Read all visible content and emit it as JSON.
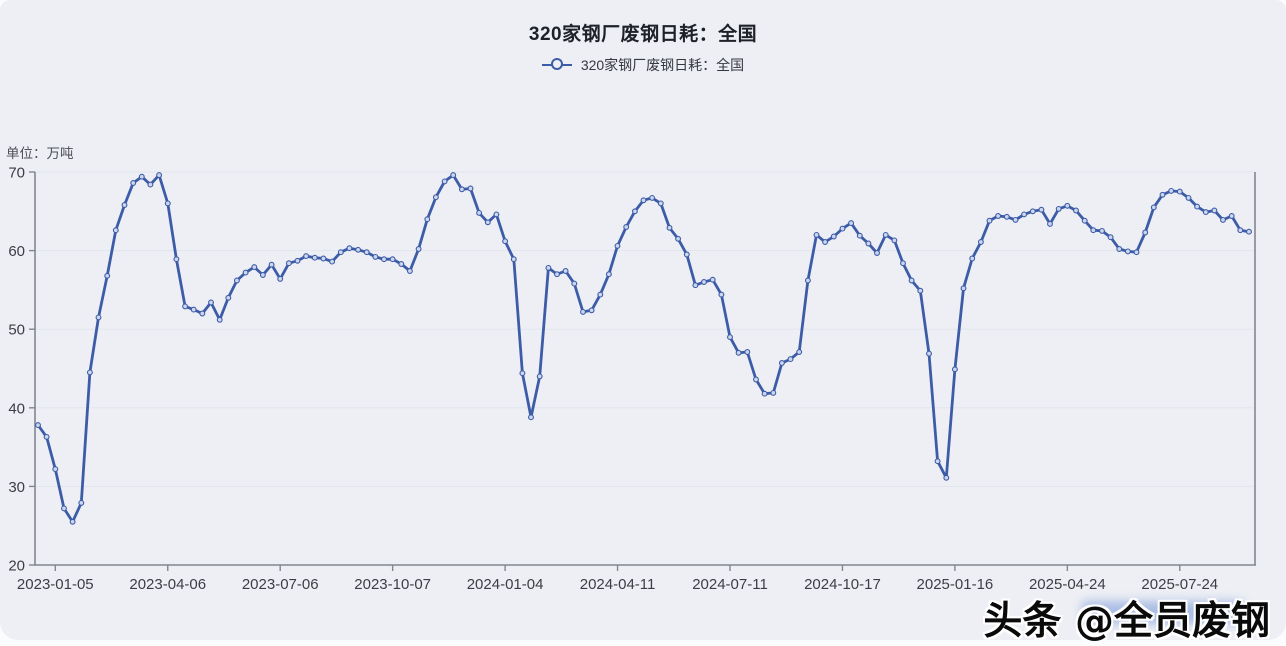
{
  "page": {
    "card_background": "#edeff4",
    "accent_color": "#3d5ca8"
  },
  "header": {
    "title": "320家钢厂废钢日耗：全国"
  },
  "legend": {
    "label": "320家钢厂废钢日耗：全国",
    "color": "#3d5ca8",
    "icon": "line-with-circle-marker"
  },
  "unit_label": "单位：万吨",
  "watermark": "头条 @全员废钢",
  "chart_data": {
    "type": "line",
    "title": "320家钢厂废钢日耗：全国",
    "ylabel": "万吨",
    "ylim": [
      20,
      70
    ],
    "y_ticks": [
      20,
      30,
      40,
      50,
      60,
      70
    ],
    "grid": "horizontal",
    "legend_position": "top-center",
    "marker": "hollow-circle",
    "x_tick_labels": [
      "2023-01-05",
      "2023-04-06",
      "2023-07-06",
      "2023-10-07",
      "2024-01-04",
      "2024-04-11",
      "2024-07-11",
      "2024-10-17",
      "2025-01-16",
      "2025-04-24",
      "2025-07-24"
    ],
    "x_tick_indices": [
      2,
      15,
      28,
      41,
      54,
      67,
      80,
      93,
      106,
      119,
      132
    ],
    "series": [
      {
        "name": "320家钢厂废钢日耗：全国",
        "color": "#3d5ca8",
        "values": [
          37.8,
          36.3,
          32.2,
          27.2,
          25.5,
          27.9,
          44.5,
          51.5,
          56.8,
          62.6,
          65.8,
          68.6,
          69.4,
          68.4,
          69.6,
          66.0,
          58.9,
          52.9,
          52.5,
          52.0,
          53.4,
          51.2,
          54.0,
          56.2,
          57.2,
          57.9,
          56.9,
          58.2,
          56.4,
          58.4,
          58.7,
          59.3,
          59.1,
          59.0,
          58.6,
          59.8,
          60.3,
          60.1,
          59.8,
          59.2,
          58.9,
          58.9,
          58.3,
          57.4,
          60.2,
          64.0,
          66.8,
          68.8,
          69.6,
          67.8,
          67.9,
          64.8,
          63.6,
          64.6,
          61.2,
          58.9,
          44.4,
          38.8,
          44.0,
          57.8,
          57.0,
          57.4,
          55.8,
          52.2,
          52.4,
          54.4,
          57.0,
          60.6,
          63.0,
          65.0,
          66.4,
          66.7,
          66.0,
          62.9,
          61.5,
          59.5,
          55.6,
          56.0,
          56.3,
          54.4,
          49.0,
          47.0,
          47.1,
          43.6,
          41.8,
          41.9,
          45.7,
          46.2,
          47.1,
          56.2,
          62.0,
          61.1,
          61.8,
          62.8,
          63.5,
          61.9,
          60.9,
          59.7,
          62.0,
          61.3,
          58.4,
          56.2,
          54.9,
          46.9,
          33.2,
          31.1,
          44.9,
          55.2,
          59.0,
          61.1,
          63.8,
          64.4,
          64.3,
          63.9,
          64.6,
          65.0,
          65.2,
          63.4,
          65.3,
          65.7,
          65.1,
          63.8,
          62.6,
          62.5,
          61.7,
          60.2,
          59.9,
          59.8,
          62.3,
          65.5,
          67.1,
          67.6,
          67.5,
          66.7,
          65.6,
          64.9,
          65.1,
          63.9,
          64.4,
          62.6,
          62.4
        ]
      }
    ]
  }
}
